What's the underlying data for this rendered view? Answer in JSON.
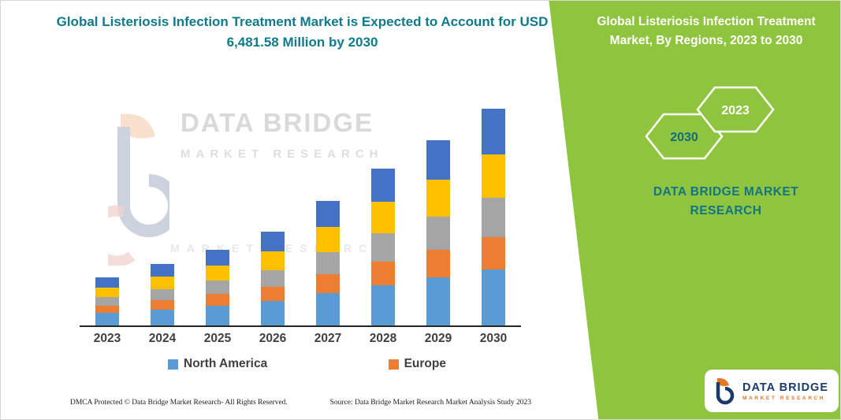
{
  "left": {
    "title": "Global Listeriosis Infection Treatment Market is Expected to Account for USD 6,481.58 Million by 2030",
    "watermark": {
      "line1": "DATA BRIDGE",
      "line2": "MARKET RESEARCH"
    },
    "footer": {
      "dmca": "DMCA Protected © Data Bridge Market Research-  All Rights Reserved.",
      "source": "Source: Data Bridge Market Research  Market Analysis Study 2023"
    }
  },
  "legend": {
    "items": [
      {
        "label": "North America",
        "color": "#5B9BD5"
      },
      {
        "label": "Europe",
        "color": "#ED7D31"
      }
    ]
  },
  "chart_data": {
    "type": "bar",
    "stacked": true,
    "title": "Global Listeriosis Infection Treatment Market, By Regions, 2023 to 2030",
    "categories": [
      "2023",
      "2024",
      "2025",
      "2026",
      "2027",
      "2028",
      "2029",
      "2030"
    ],
    "series": [
      {
        "name": "North America",
        "color": "#5B9BD5",
        "values": [
          368,
          478,
          594,
          729,
          968,
          1213,
          1446,
          1685
        ]
      },
      {
        "name": "Europe",
        "color": "#ED7D31",
        "values": [
          212,
          276,
          343,
          421,
          559,
          700,
          834,
          972
        ]
      },
      {
        "name": "Unlabeled region (gray)",
        "color": "#A5A5A5",
        "values": [
          255,
          331,
          411,
          505,
          670,
          840,
          1001,
          1167
        ]
      },
      {
        "name": "Unlabeled region (yellow)",
        "color": "#FFC000",
        "values": [
          283,
          368,
          457,
          561,
          745,
          933,
          1112,
          1296
        ]
      },
      {
        "name": "Unlabeled region (dark blue)",
        "color": "#4472C4",
        "values": [
          297,
          386,
          480,
          589,
          782,
          980,
          1168,
          1362
        ]
      }
    ],
    "unit": "USD Million",
    "values_estimated_from_pixels": true,
    "total_2030": 6481.58,
    "xlabel": "",
    "ylabel": "",
    "y_axis_visible": false,
    "grid": false,
    "legend_position": "bottom",
    "legend_visible_entries": [
      "North America",
      "Europe"
    ]
  },
  "right": {
    "title": "Global Listeriosis Infection Treatment Market, By Regions, 2023 to 2030",
    "hex_back_label": "2030",
    "hex_front_label": "2023",
    "brand_text": "DATA BRIDGE MARKET RESEARCH"
  },
  "logo": {
    "name_line": "DATA BRIDGE",
    "sub_line": "MARKET RESEARCH"
  },
  "colors": {
    "teal": "#0e7b8c",
    "teal_dark": "#127585",
    "panel_green": "#8fc43f",
    "navy": "#1b3a6b",
    "orange": "#e87722",
    "axis": "#262626"
  }
}
